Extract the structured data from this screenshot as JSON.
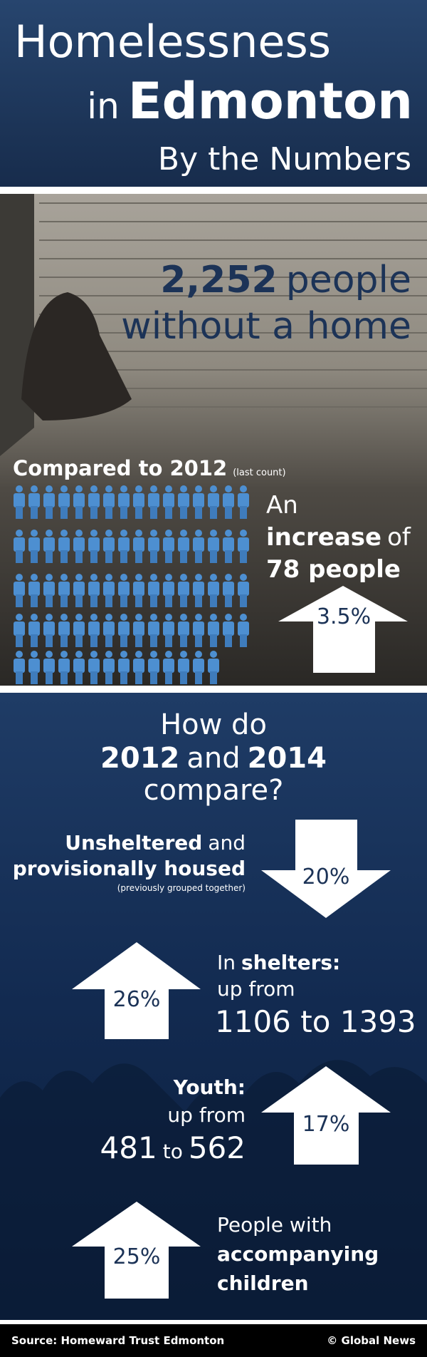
{
  "header": {
    "title": [
      "Homelessness",
      "in",
      "Edmonton"
    ],
    "subtitle": "By the Numbers"
  },
  "total": {
    "number": "2,252",
    "text": [
      "people",
      "without a home"
    ]
  },
  "comparison": {
    "heading": "Compared to 2012",
    "note": "(last count)",
    "text": [
      "An",
      "increase",
      "of",
      "78 people"
    ],
    "arrow": "3.5%"
  },
  "changes": {
    "title": [
      "How do",
      "2012",
      "and",
      "2014",
      "compare?"
    ],
    "items": [
      {
        "label": [
          "Unsheltered",
          "and",
          "provisionally housed"
        ],
        "note": "(previously grouped together)",
        "arrow": "20%"
      },
      {
        "label": [
          "In",
          "shelters:",
          "up from",
          "1106 to 1393"
        ],
        "arrow": "26%"
      },
      {
        "label": [
          "Youth:",
          "up from",
          "481",
          "to",
          "562"
        ],
        "arrow": "17%"
      },
      {
        "label": [
          "People with",
          "accompanying",
          "children"
        ],
        "arrow": "25%"
      }
    ]
  },
  "footer": {
    "source": "Source: Homeward Trust Edmonton",
    "credit": "© Global News"
  }
}
